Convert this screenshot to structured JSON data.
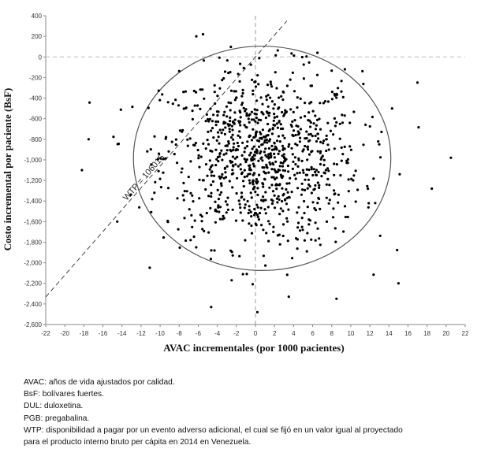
{
  "chart_data": {
    "type": "scatter",
    "title": "",
    "xlabel": "AVAC incrementales (por 1000 pacientes)",
    "ylabel": "Costo incremental por paciente (BsF)",
    "xlim": [
      -22,
      22
    ],
    "ylim": [
      -2600,
      400
    ],
    "xticks": [
      -22,
      -20,
      -18,
      -16,
      -14,
      -12,
      -10,
      -8,
      -6,
      -4,
      -2,
      0,
      2,
      4,
      6,
      8,
      10,
      12,
      14,
      16,
      18,
      20,
      22
    ],
    "yticks": [
      400,
      200,
      0,
      -200,
      -400,
      -600,
      -800,
      -1000,
      -1200,
      -1400,
      -1600,
      -1800,
      -2000,
      -2200,
      -2400,
      -2600
    ],
    "grid": false,
    "reference_lines": {
      "x": 0,
      "y": 0,
      "style": "dashed"
    },
    "wtp_line": {
      "label": "WTP = 106015",
      "slope_bsf_per_avac": 106.015
    },
    "ellipse_95": {
      "center": [
        0.7,
        -985
      ],
      "rx_avac": 13.5,
      "ry_bsf": 1090
    },
    "points_n": 1000,
    "points_note": "simulated pairs (incremental AVAC, incremental cost); cloud centred near (0, -1000)",
    "sample_points": [
      {
        "x": -18.2,
        "y": -1100
      },
      {
        "x": -17.5,
        "y": -800
      },
      {
        "x": -6.2,
        "y": 200
      },
      {
        "x": -5.5,
        "y": 220
      },
      {
        "x": 6.5,
        "y": 40
      },
      {
        "x": 0.2,
        "y": -2480
      },
      {
        "x": 8.5,
        "y": -2350
      },
      {
        "x": 20.5,
        "y": -980
      },
      {
        "x": 18.5,
        "y": -1280
      },
      {
        "x": -14.5,
        "y": -1600
      },
      {
        "x": 17,
        "y": -250
      },
      {
        "x": 15,
        "y": -2200
      },
      {
        "x": -2.5,
        "y": -2170
      },
      {
        "x": 3.5,
        "y": -2330
      }
    ]
  },
  "notes": [
    "AVAC: años de vida ajustados por calidad.",
    "BsF: bolívares fuertes.",
    "DUL: duloxetina.",
    "PGB: pregabalina.",
    "WTP: disponibilidad a pagar por un evento adverso adicional, el cual se fijó en un valor igual al proyectado",
    "para el producto interno bruto per cápita en 2014 en Venezuela."
  ],
  "colors": {
    "points": "#000000",
    "axes": "#888888",
    "ellipse": "#555555",
    "dashed": "#444444"
  }
}
